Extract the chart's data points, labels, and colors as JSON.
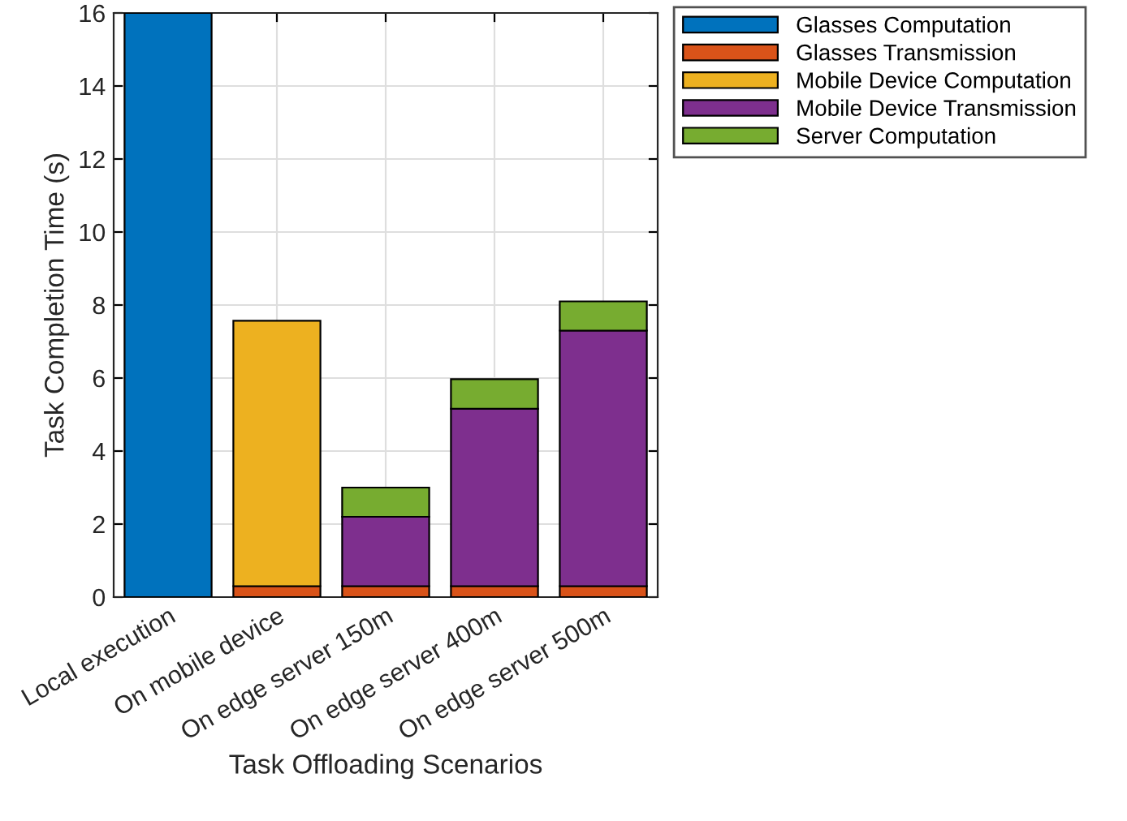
{
  "chart_data": {
    "type": "bar",
    "stacked": true,
    "xlabel": "Task Offloading Scenarios",
    "ylabel": "Task Completion Time (s)",
    "categories": [
      "Local execution",
      "On mobile device",
      "On edge server 150m",
      "On edge server 400m",
      "On edge server 500m"
    ],
    "series": [
      {
        "name": "Glasses Computation",
        "color": "#0072bd",
        "values": [
          16,
          null,
          null,
          null,
          null
        ]
      },
      {
        "name": "Glasses Transmission",
        "color": "#d95319",
        "values": [
          null,
          0.3,
          0.3,
          0.3,
          0.3
        ]
      },
      {
        "name": "Mobile Device Computation",
        "color": "#edb120",
        "values": [
          null,
          7.27,
          null,
          null,
          null
        ]
      },
      {
        "name": "Mobile Device Transmission",
        "color": "#7e2f8e",
        "values": [
          null,
          null,
          1.9,
          4.86,
          7.0
        ]
      },
      {
        "name": "Server Computation",
        "color": "#77ac30",
        "values": [
          null,
          null,
          0.8,
          0.81,
          0.8
        ]
      }
    ],
    "ylim": [
      0,
      16
    ],
    "yticks": [
      0,
      2,
      4,
      6,
      8,
      10,
      12,
      14,
      16
    ],
    "grid": true,
    "legend": "top right"
  }
}
